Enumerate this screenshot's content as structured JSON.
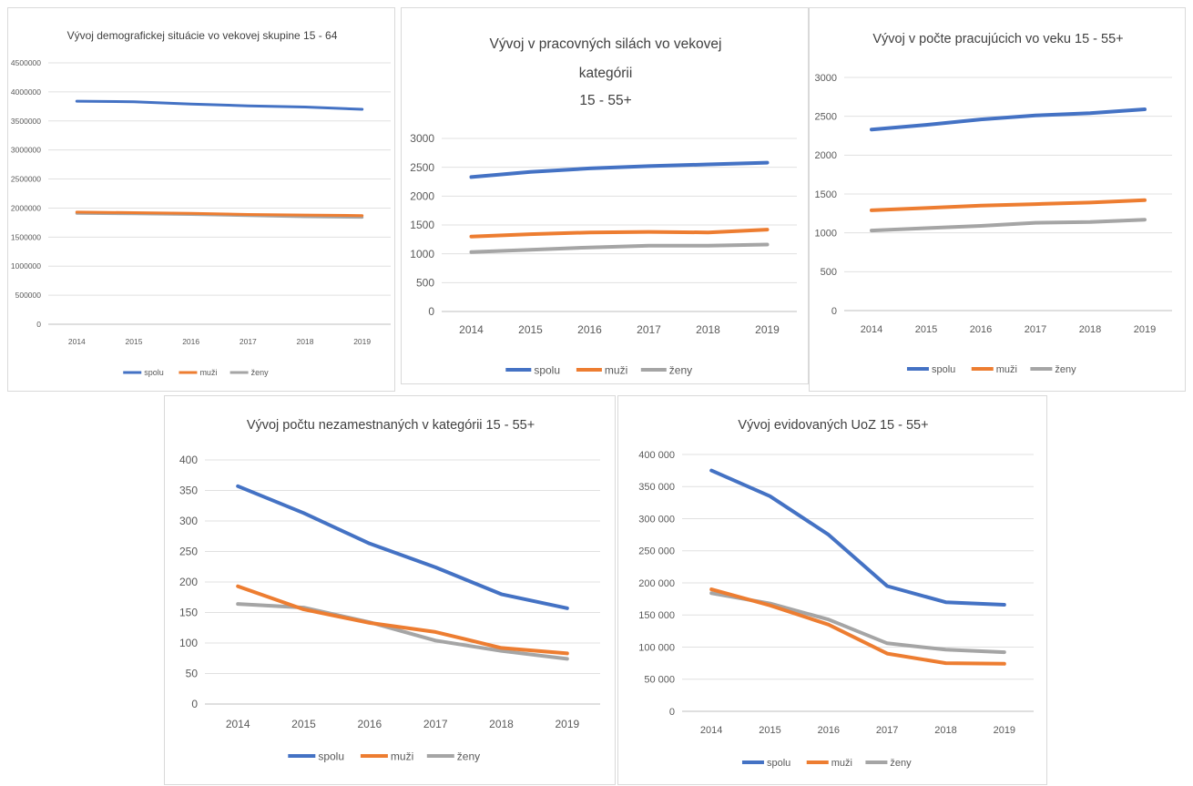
{
  "chart_data": [
    {
      "type": "line",
      "title": "Vývoj demografickej situácie vo vekovej skupine 15 - 64",
      "categories": [
        "2014",
        "2015",
        "2016",
        "2017",
        "2018",
        "2019"
      ],
      "ylim": [
        0,
        4500000
      ],
      "y_ticks": [
        "0",
        "500000",
        "1000000",
        "1500000",
        "2000000",
        "2500000",
        "3000000",
        "3500000",
        "4000000",
        "4500000"
      ],
      "series": [
        {
          "name": "spolu",
          "color": "#4472c4",
          "values": [
            3840000,
            3830000,
            3790000,
            3760000,
            3740000,
            3700000
          ]
        },
        {
          "name": "muži",
          "color": "#ed7d31",
          "values": [
            1930000,
            1920000,
            1910000,
            1890000,
            1880000,
            1870000
          ]
        },
        {
          "name": "ženy",
          "color": "#a5a5a5",
          "values": [
            1910000,
            1900000,
            1890000,
            1870000,
            1850000,
            1840000
          ]
        }
      ],
      "grid": true,
      "legend": "bottom"
    },
    {
      "type": "line",
      "title": "Vývoj v pracovných silách vo vekovej kategórii 15 - 55+",
      "title_lines": [
        "Vývoj v pracovných silách vo vekovej",
        "kategórii",
        "15 - 55+"
      ],
      "categories": [
        "2014",
        "2015",
        "2016",
        "2017",
        "2018",
        "2019"
      ],
      "ylim": [
        0,
        3000
      ],
      "y_ticks": [
        "0",
        "500",
        "1000",
        "1500",
        "2000",
        "2500",
        "3000"
      ],
      "series": [
        {
          "name": "spolu",
          "color": "#4472c4",
          "values": [
            2330,
            2420,
            2480,
            2520,
            2550,
            2580
          ]
        },
        {
          "name": "muži",
          "color": "#ed7d31",
          "values": [
            1300,
            1340,
            1370,
            1380,
            1370,
            1420
          ]
        },
        {
          "name": "ženy",
          "color": "#a5a5a5",
          "values": [
            1030,
            1070,
            1110,
            1140,
            1140,
            1160
          ]
        }
      ],
      "grid": true,
      "legend": "bottom"
    },
    {
      "type": "line",
      "title": "Vývoj  v počte pracujúcich vo veku 15 - 55+",
      "categories": [
        "2014",
        "2015",
        "2016",
        "2017",
        "2018",
        "2019"
      ],
      "ylim": [
        0,
        3000
      ],
      "y_ticks": [
        "0",
        "500",
        "1000",
        "1500",
        "2000",
        "2500",
        "3000"
      ],
      "series": [
        {
          "name": "spolu",
          "color": "#4472c4",
          "values": [
            2330,
            2390,
            2460,
            2510,
            2540,
            2590
          ]
        },
        {
          "name": "muži",
          "color": "#ed7d31",
          "values": [
            1290,
            1320,
            1350,
            1370,
            1390,
            1420
          ]
        },
        {
          "name": "ženy",
          "color": "#a5a5a5",
          "values": [
            1030,
            1060,
            1090,
            1130,
            1140,
            1170
          ]
        }
      ],
      "grid": true,
      "legend": "bottom"
    },
    {
      "type": "line",
      "title": "Vývoj počtu nezamestnaných v kategórii 15 - 55+",
      "categories": [
        "2014",
        "2015",
        "2016",
        "2017",
        "2018",
        "2019"
      ],
      "ylim": [
        0,
        400
      ],
      "y_ticks": [
        "0",
        "50",
        "100",
        "150",
        "200",
        "250",
        "300",
        "350",
        "400"
      ],
      "series": [
        {
          "name": "spolu",
          "color": "#4472c4",
          "values": [
            357,
            313,
            263,
            224,
            180,
            157
          ]
        },
        {
          "name": "muži",
          "color": "#ed7d31",
          "values": [
            193,
            155,
            133,
            118,
            92,
            83
          ]
        },
        {
          "name": "ženy",
          "color": "#a5a5a5",
          "values": [
            164,
            158,
            134,
            104,
            87,
            74
          ]
        }
      ],
      "grid": true,
      "legend": "bottom"
    },
    {
      "type": "line",
      "title": "Vývoj evidovaných UoZ 15 - 55+",
      "categories": [
        "2014",
        "2015",
        "2016",
        "2017",
        "2018",
        "2019"
      ],
      "ylim": [
        0,
        400000
      ],
      "y_ticks": [
        "0",
        "50 000",
        "100 000",
        "150 000",
        "200 000",
        "250 000",
        "300 000",
        "350 000",
        "400 000"
      ],
      "series": [
        {
          "name": "spolu",
          "color": "#4472c4",
          "values": [
            375000,
            335000,
            275000,
            195000,
            170000,
            166000
          ]
        },
        {
          "name": "muži",
          "color": "#ed7d31",
          "values": [
            190000,
            165000,
            135000,
            90000,
            75000,
            74000
          ]
        },
        {
          "name": "ženy",
          "color": "#a5a5a5",
          "values": [
            184000,
            168000,
            143000,
            106000,
            96000,
            92000
          ]
        }
      ],
      "grid": true,
      "legend": "bottom"
    }
  ]
}
